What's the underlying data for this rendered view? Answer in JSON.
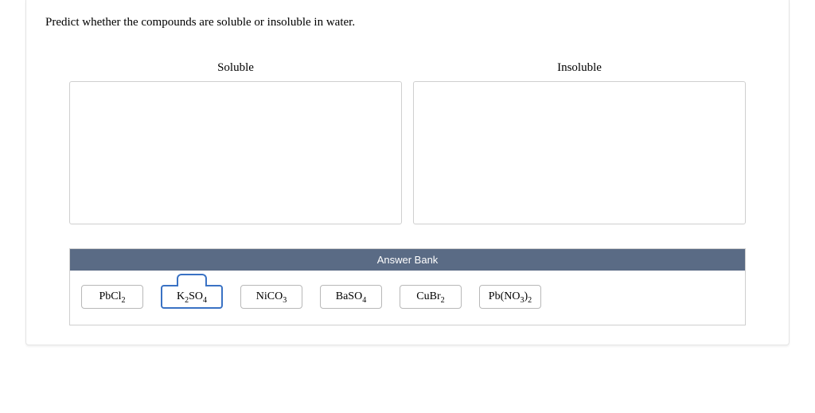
{
  "question": "Predict whether the compounds are soluble or insoluble in water.",
  "bins": {
    "left": {
      "label": "Soluble"
    },
    "right": {
      "label": "Insoluble"
    }
  },
  "answer_bank": {
    "header": "Answer Bank",
    "tiles": [
      {
        "formula_html": "PbCl<span class='sub'>2</span>",
        "grabbed": false
      },
      {
        "formula_html": "K<span class='sub'>2</span>SO<span class='sub'>4</span>",
        "grabbed": true
      },
      {
        "formula_html": "NiCO<span class='sub'>3</span>",
        "grabbed": false
      },
      {
        "formula_html": "BaSO<span class='sub'>4</span>",
        "grabbed": false
      },
      {
        "formula_html": "CuBr<span class='sub'>2</span>",
        "grabbed": false
      },
      {
        "formula_html": "Pb(NO<span class='sub'>3</span>)<span class='sub'>2</span>",
        "grabbed": false
      }
    ]
  },
  "colors": {
    "card_border": "#e4e4e4",
    "bin_border": "#cfcfcf",
    "bank_header_bg": "#5a6b85",
    "bank_header_text": "#ffffff",
    "tile_border": "#b8b8b8",
    "tile_grab_border": "#3a72c4",
    "background": "#ffffff"
  }
}
